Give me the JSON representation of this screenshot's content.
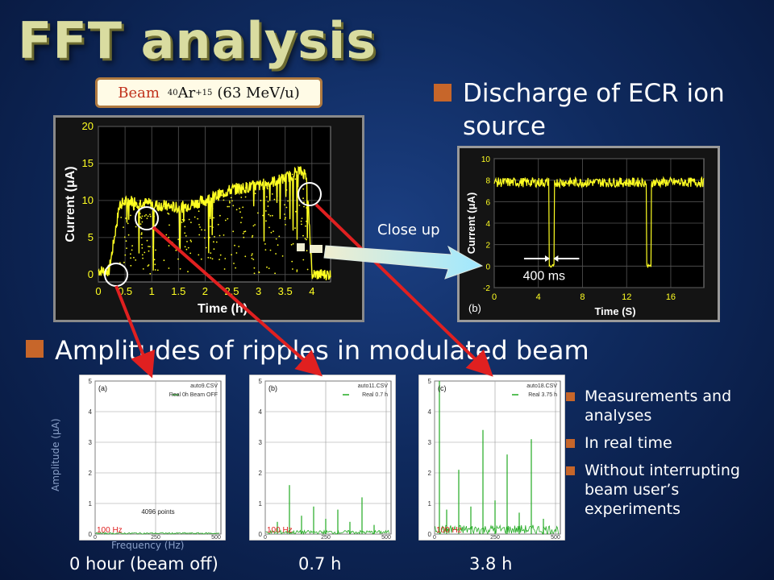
{
  "title": "FFT analysis",
  "beam": {
    "word": "Beam",
    "mass": "40",
    "element": "Ar",
    "charge": "+15",
    "energy": "(63 MeV/u)"
  },
  "bullets": {
    "discharge": "Discharge of ECR ion source",
    "amplitudes": "Amplitudes of ripples in modulated beam",
    "small": [
      "Measurements and analyses",
      "In real time",
      "Without interrupting  beam user’s experiments"
    ]
  },
  "close_up_label": "Close up",
  "time_labels": [
    "0 hour (beam off)",
    "0.7 h",
    "3.8 h"
  ],
  "colors": {
    "trace": "#ffff22",
    "fft_trace": "#22aa22",
    "accent": "#c7662a",
    "arrow": "#e02020"
  },
  "chart_data": [
    {
      "type": "scatter",
      "name_ref": "main-current-chart",
      "ylabel": "Current (μA)",
      "xlabel": "Time (h)",
      "xticks": [
        "0",
        "0.5",
        "1",
        "1.5",
        "2",
        "2.5",
        "3",
        "3.5",
        "4"
      ],
      "yticks": [
        "0",
        "5",
        "10",
        "15",
        "20"
      ],
      "xlim": [
        0,
        4.35
      ],
      "ylim": [
        -1,
        20
      ],
      "trend": {
        "x": [
          0,
          0.2,
          0.4,
          0.6,
          1.0,
          1.5,
          2.0,
          2.5,
          3.0,
          3.5,
          3.75,
          3.9,
          4.0,
          4.3
        ],
        "y": [
          0.5,
          0.5,
          9.5,
          10,
          9.5,
          9,
          10,
          11.5,
          12,
          13,
          14,
          13.5,
          0,
          0
        ]
      }
    },
    {
      "type": "line",
      "name_ref": "closeup-current-chart",
      "ylabel": "Current (μA)",
      "xlabel": "Time (S)",
      "xticks": [
        "0",
        "4",
        "8",
        "12",
        "16"
      ],
      "yticks": [
        "-2",
        "0",
        "2",
        "4",
        "6",
        "8",
        "10"
      ],
      "xlim": [
        0,
        19
      ],
      "ylim": [
        -2,
        10
      ],
      "baseline": 7.8,
      "dips": [
        5.2,
        14.0
      ],
      "annotation": "400 ms",
      "panel": "(b)"
    },
    {
      "type": "bar",
      "panel": "(a)",
      "file": "auto9.CSV",
      "legend": "Real 0h Beam OFF",
      "note": "4096 points",
      "marker": "100 Hz",
      "xticks": [
        "0",
        "250",
        "500"
      ],
      "yticks": [
        "0",
        "1",
        "2",
        "3",
        "4",
        "5"
      ],
      "ylabel": "Amplitude (μA)",
      "xlabel": "Frequency (Hz)",
      "ylim": [
        0,
        5
      ],
      "peaks": {
        "x": [],
        "y": []
      }
    },
    {
      "type": "bar",
      "panel": "(b)",
      "file": "auto11.CSV",
      "legend": "Real 0.7 h",
      "marker": "100 Hz",
      "xticks": [
        "0",
        "250",
        "500"
      ],
      "yticks": [
        "0",
        "1",
        "2",
        "3",
        "4",
        "5"
      ],
      "ylim": [
        0,
        5
      ],
      "peaks": {
        "x": [
          50,
          100,
          150,
          200,
          250,
          300,
          350,
          400,
          450
        ],
        "y": [
          0.4,
          1.6,
          0.6,
          0.9,
          0.5,
          0.8,
          0.4,
          1.2,
          0.3
        ]
      }
    },
    {
      "type": "bar",
      "panel": "(c)",
      "file": "auto18.CSV",
      "legend": "Real 3.75 h",
      "marker": "100 Hz",
      "xticks": [
        "0",
        "250",
        "500"
      ],
      "yticks": [
        "0",
        "1",
        "2",
        "3",
        "4",
        "5"
      ],
      "ylim": [
        0,
        5
      ],
      "peaks": {
        "x": [
          20,
          50,
          100,
          150,
          200,
          250,
          300,
          350,
          400,
          450
        ],
        "y": [
          5.0,
          0.8,
          2.1,
          0.9,
          3.4,
          1.1,
          2.6,
          0.7,
          3.1,
          0.5
        ]
      }
    }
  ]
}
